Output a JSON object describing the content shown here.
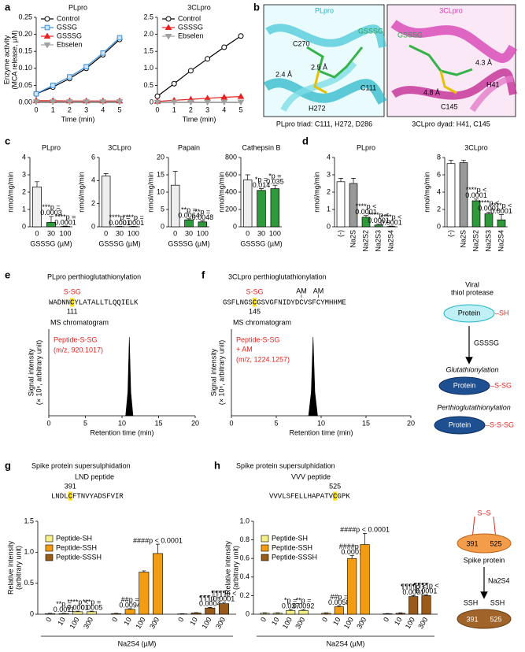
{
  "panel_labels": [
    "a",
    "b",
    "c",
    "d",
    "e",
    "f",
    "g",
    "h"
  ],
  "structures": {
    "plpro": {
      "title": "PLpro",
      "ligand": "GSSSG",
      "labels": [
        "C270",
        "2.4 Å",
        "2.5 Å",
        "C111",
        "H272"
      ],
      "caption": "PLpro triad: C111, H272, D286"
    },
    "clpro": {
      "title": "3CLpro",
      "ligand": "GSSSG",
      "labels": [
        "4.3 Å",
        "H41",
        "4.8 Å",
        "C145"
      ],
      "caption": "3CLpro dyad: H41, C145"
    }
  },
  "scheme_thiol": {
    "title": [
      "Viral",
      "thiol protease"
    ],
    "protein": "Protein",
    "sh": "–SH",
    "reagent": "GSSSG",
    "step1": "Glutathionylation",
    "product1": "–S-SG",
    "step2": "Perthioglutathionylation",
    "product2": "–S-S-SG"
  },
  "scheme_spike": {
    "ss": "S–S",
    "residues": [
      "391",
      "525"
    ],
    "label": "Spike protein",
    "reagent": "Na2S4",
    "products": [
      "SSH",
      "SSH"
    ]
  },
  "chart_data": [
    {
      "type": "line",
      "title": "PLpro",
      "x": [
        0,
        1,
        2,
        3,
        4,
        5
      ],
      "xlim": [
        0,
        5
      ],
      "xticks": [
        0,
        1,
        2,
        3,
        4,
        5
      ],
      "ylim": [
        0,
        0.25
      ],
      "yticks": [
        {
          "value": 0,
          "label": "0.00"
        },
        0.05,
        {
          "value": 0.1,
          "label": "0.10"
        },
        0.15,
        {
          "value": 0.2,
          "label": "0.20"
        },
        0.25
      ],
      "xlabel": "Time (min)",
      "ylabel": [
        "Enzyme activity",
        "(MCA release, µM)"
      ],
      "series": [
        {
          "name": "Control",
          "color": "#000000",
          "marker": "circle",
          "values": [
            0.025,
            0.045,
            0.07,
            0.1,
            0.14,
            0.185
          ]
        },
        {
          "name": "GSSG",
          "color": "#3b8fd9",
          "marker": "square",
          "values": [
            0.025,
            0.05,
            0.075,
            0.105,
            0.145,
            0.19
          ]
        },
        {
          "name": "GSSSG",
          "color": "#e8231f",
          "marker": "triangle",
          "values": [
            0.005,
            0.005,
            0.004,
            0.004,
            0.004,
            0.004
          ]
        },
        {
          "name": "Ebselen",
          "color": "#a0a0a0",
          "marker": "triangle-down",
          "values": [
            0.002,
            0.002,
            0.002,
            0.002,
            0.002,
            0.002
          ]
        }
      ]
    },
    {
      "type": "line",
      "title": "3CLpro",
      "x": [
        0,
        1,
        2,
        3,
        4,
        5
      ],
      "xlim": [
        0,
        5
      ],
      "xticks": [
        0,
        1,
        2,
        3,
        4,
        5
      ],
      "ylim": [
        0,
        2.5
      ],
      "yticks": [
        0,
        0.5,
        {
          "value": 1,
          "label": "1.0"
        },
        1.5,
        {
          "value": 2,
          "label": "2.0"
        },
        2.5
      ],
      "xlabel": "Time (min)",
      "series": [
        {
          "name": "Control",
          "color": "#000000",
          "marker": "circle",
          "values": [
            0.18,
            0.55,
            0.93,
            1.28,
            1.62,
            1.95
          ]
        },
        {
          "name": "GSSSG",
          "color": "#e8231f",
          "marker": "triangle",
          "values": [
            0.03,
            0.06,
            0.09,
            0.12,
            0.15,
            0.17
          ]
        },
        {
          "name": "Ebselen",
          "color": "#a0a0a0",
          "marker": "triangle-down",
          "values": [
            0.01,
            0.01,
            0.01,
            0.01,
            0.01,
            0.01
          ]
        }
      ]
    },
    {
      "type": "bar",
      "title": "PLpro",
      "categories": [
        "0",
        "30",
        "100"
      ],
      "values": [
        2.3,
        0.25,
        0.02
      ],
      "errors": [
        0.3,
        0.35,
        0.02
      ],
      "colors": [
        "#eeeeee",
        "#2e9b3a",
        "#2e9b3a"
      ],
      "annotations": [
        null,
        [
          "***p =",
          "0.0003"
        ],
        [
          "****p =",
          "0.0001"
        ]
      ],
      "ylim": [
        0,
        4
      ],
      "yticks": [
        0,
        1,
        2,
        3,
        4
      ],
      "xlabel": "GSSSG (µM)",
      "ylabel": "nmol/mg/min"
    },
    {
      "type": "bar",
      "title": "3CLpro",
      "categories": [
        "0",
        "30",
        "100"
      ],
      "values": [
        4.4,
        0.02,
        0.02
      ],
      "errors": [
        0.2,
        0.02,
        0.02
      ],
      "colors": [
        "#eeeeee",
        "#2e9b3a",
        "#2e9b3a"
      ],
      "annotations": [
        null,
        [
          "****p =",
          "0.0001"
        ],
        [
          "****p =",
          "0.0001"
        ]
      ],
      "ylim": [
        0,
        6
      ],
      "yticks": [
        0,
        2,
        4,
        6
      ],
      "xlabel": "GSSSG (µM)",
      "ylabel": "nmol/mg/min"
    },
    {
      "type": "bar",
      "title": "Papain",
      "categories": [
        "0",
        "30",
        "100"
      ],
      "values": [
        12,
        2.0,
        1.4
      ],
      "errors": [
        4,
        0.3,
        0.3
      ],
      "colors": [
        "#eeeeee",
        "#2e9b3a",
        "#2e9b3a"
      ],
      "annotations": [
        null,
        [
          "**p =",
          "0.0064"
        ],
        [
          "**p =",
          "0.0048"
        ]
      ],
      "ylim": [
        0,
        20
      ],
      "yticks": [
        0,
        5,
        10,
        15,
        20
      ],
      "xlabel": "GSSSG (µM)",
      "ylabel": "nmol/mg/min"
    },
    {
      "type": "bar",
      "title": "Cathepsin B",
      "categories": [
        "0",
        "30",
        "100"
      ],
      "values": [
        540,
        420,
        440
      ],
      "errors": [
        60,
        20,
        40
      ],
      "colors": [
        "#eeeeee",
        "#2e9b3a",
        "#2e9b3a"
      ],
      "annotations": [
        null,
        [
          "*p =",
          "0.014"
        ],
        [
          "*p =",
          "0.035"
        ]
      ],
      "ylim": [
        0,
        800
      ],
      "yticks": [
        0,
        200,
        400,
        600,
        800
      ],
      "xlabel": "GSSSG (µM)",
      "ylabel": "nmol/mg/min"
    },
    {
      "type": "bar",
      "title": "PLpro",
      "categories": [
        "(-)",
        "Na2S",
        "Na2S2",
        "Na2S3",
        "Na2S4"
      ],
      "values": [
        2.6,
        2.5,
        0.55,
        0.1,
        0.02
      ],
      "errors": [
        0.2,
        0.3,
        0.1,
        0.05,
        0.02
      ],
      "colors": [
        "#ffffff",
        "#999999",
        "#2e9b3a",
        "#2e9b3a",
        "#2e9b3a"
      ],
      "annotations": [
        null,
        null,
        [
          "****p <",
          "0.0001"
        ],
        [
          "****p <",
          "0.0001"
        ],
        [
          "****p <",
          "0.0001"
        ]
      ],
      "ylim": [
        0,
        4
      ],
      "yticks": [
        0,
        1,
        2,
        3,
        4
      ],
      "ylabel": "nmol/mg/min"
    },
    {
      "type": "bar",
      "title": "3CLpro",
      "categories": [
        "(-)",
        "Na2S",
        "Na2S2",
        "Na2S3",
        "Na2S4"
      ],
      "values": [
        7.3,
        7.4,
        3.0,
        1.5,
        0.8
      ],
      "errors": [
        0.4,
        0.3,
        0.2,
        0.2,
        0.6
      ],
      "colors": [
        "#ffffff",
        "#999999",
        "#2e9b3a",
        "#2e9b3a",
        "#2e9b3a"
      ],
      "annotations": [
        null,
        null,
        [
          "****p <",
          "0.0001"
        ],
        [
          "****p <",
          "0.0001"
        ],
        [
          "****p <",
          "0.0001"
        ]
      ],
      "ylim": [
        0,
        8
      ],
      "yticks": [
        0,
        2,
        4,
        6,
        8
      ],
      "ylabel": "nmol/mg/min"
    },
    {
      "type": "area",
      "title": "PLpro perthioglutathionylation",
      "modification": "S-SG",
      "sequence": "WADNNCYLATALLTLQQIELK",
      "residue": "111",
      "subtitle": "MS chromatogram",
      "peptide": "Peptide-S-SG",
      "mz": "(m/z, 920.1017)",
      "x": [
        10.5,
        10.8,
        11.0,
        11.2,
        11.5
      ],
      "values": [
        0,
        0.3,
        1,
        0.3,
        0
      ],
      "color": "#000000",
      "xlim": [
        0,
        20
      ],
      "xticks": [
        0,
        5,
        10,
        15,
        20
      ],
      "ylim": [
        0,
        1.1
      ],
      "xlabel": "Retention time (min)",
      "ylabel": [
        "Signal intensity",
        "(× 10⁶, arbitrary unit)"
      ]
    },
    {
      "type": "area",
      "title": "3CLpro perthioglutathionylation",
      "modification": "S-SG",
      "alkylation": [
        "AM",
        "AM"
      ],
      "sequence": "GSFLNGSCGSVGFNIDYDCVSFCYMHHME",
      "residue": "145",
      "subtitle": "MS chromatogram",
      "peptide": "Peptide-S-SG",
      "peptide_note": "+ AM",
      "mz": "(m/z, 1224.1257)",
      "x": [
        8.6,
        8.9,
        9.1,
        9.3,
        9.6
      ],
      "values": [
        0,
        0.3,
        1,
        0.3,
        0
      ],
      "color": "#000000",
      "xlim": [
        0,
        20
      ],
      "xticks": [
        0,
        5,
        10,
        15,
        20
      ],
      "ylim": [
        0,
        1.1
      ],
      "xlabel": "Retention time (min)",
      "ylabel": [
        "Signal intensity",
        "(× 10⁶, arbitrary unit)"
      ]
    },
    {
      "type": "grouped",
      "title": "Spike protein supersulphidation",
      "subtitle": "LND peptide",
      "residue": "391",
      "sequence": "LNDLCFTNVYADSFVIR",
      "categories": [
        "0",
        "10",
        "100",
        "300"
      ],
      "series": [
        {
          "name": "Peptide-SH",
          "color": "#f7ef8a",
          "values": [
            0.01,
            0.01,
            0.04,
            0.04
          ],
          "errors": [
            0.005,
            0.005,
            0.01,
            0.01
          ],
          "annotations": [
            null,
            [
              "**p =",
              "0.0011"
            ],
            [
              "****p <",
              "0.0001"
            ],
            [
              "***p =",
              "0.0005"
            ]
          ]
        },
        {
          "name": "Peptide-SSH",
          "color": "#f39c12",
          "values": [
            0.01,
            0.08,
            0.68,
            0.98
          ],
          "errors": [
            0.005,
            0.01,
            0.02,
            0.15
          ],
          "annotations": [
            null,
            [
              "##p =",
              "0.0094"
            ],
            null,
            [
              "####p < 0.0001"
            ]
          ]
        },
        {
          "name": "Peptide-SSSH",
          "color": "#9a5a1a",
          "values": [
            0.005,
            0.02,
            0.1,
            0.17
          ],
          "errors": [
            0.003,
            0.005,
            0.01,
            0.02
          ],
          "annotations": [
            null,
            null,
            [
              "¶¶¶p =",
              "0.0004"
            ],
            [
              "¶¶¶¶p <",
              "0.0001"
            ]
          ]
        }
      ],
      "ylim": [
        0,
        1.5
      ],
      "yticks": [
        0,
        0.5,
        {
          "value": 1,
          "label": "1.0"
        },
        1.5
      ],
      "xlabel": "Na2S4 (µM)",
      "ylabel": [
        "Relative intensity",
        "(arbitrary unit)"
      ]
    },
    {
      "type": "grouped",
      "title": "Spike protein supersulphidation",
      "subtitle": "VVV peptide",
      "residue": "525",
      "sequence": "VVVLSFELLHAPATVCGPK",
      "categories": [
        "0",
        "10",
        "100",
        "300"
      ],
      "series": [
        {
          "name": "Peptide-SH",
          "color": "#f7ef8a",
          "values": [
            0.01,
            0.01,
            0.04,
            0.04
          ],
          "errors": [
            0.005,
            0.005,
            0.01,
            0.01
          ],
          "annotations": [
            null,
            null,
            [
              "*p =",
              "0.037"
            ],
            [
              "**p =",
              "0.0092"
            ]
          ]
        },
        {
          "name": "Peptide-SSH",
          "color": "#f39c12",
          "values": [
            0.01,
            0.08,
            0.6,
            0.75
          ],
          "errors": [
            0.005,
            0.01,
            0.03,
            0.12
          ],
          "annotations": [
            null,
            [
              "##p =",
              "0.0058"
            ],
            [
              "####p =",
              "0.0001"
            ],
            [
              "####p < 0.0001"
            ]
          ]
        },
        {
          "name": "Peptide-SSSH",
          "color": "#9a5a1a",
          "values": [
            0.005,
            0.01,
            0.19,
            0.2
          ],
          "errors": [
            0.003,
            0.005,
            0.01,
            0.01
          ],
          "annotations": [
            null,
            null,
            [
              "¶¶¶¶p <",
              "0.0001"
            ],
            [
              "¶¶¶¶p <",
              "0.0001"
            ]
          ]
        }
      ],
      "ylim": [
        0,
        1.0
      ],
      "yticks": [
        0,
        0.2,
        0.4,
        0.6,
        0.8,
        {
          "value": 1,
          "label": "1.0"
        }
      ],
      "xlabel": "Na2S4 (µM)",
      "ylabel": [
        "Relative intensity",
        "(arbitrary unit)"
      ]
    }
  ]
}
